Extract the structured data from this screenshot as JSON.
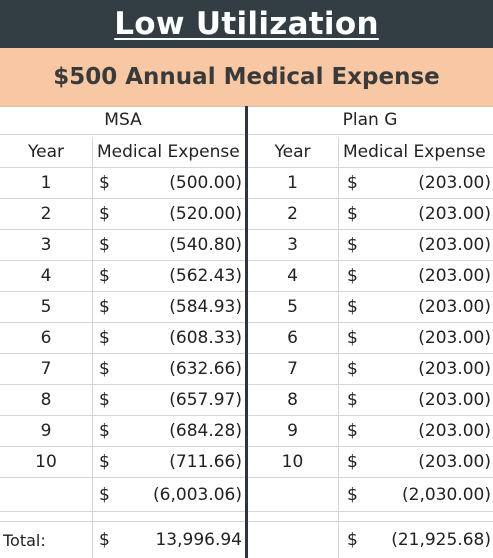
{
  "title": "Low Utilization",
  "subtitle": "$500 Annual Medical Expense",
  "msa": {
    "label": "MSA",
    "col_year": "Year",
    "col_expense": "Medical Expense",
    "rows": [
      {
        "year": "1",
        "cur": "$",
        "amount": "(500.00)"
      },
      {
        "year": "2",
        "cur": "$",
        "amount": "(520.00)"
      },
      {
        "year": "3",
        "cur": "$",
        "amount": "(540.80)"
      },
      {
        "year": "4",
        "cur": "$",
        "amount": "(562.43)"
      },
      {
        "year": "5",
        "cur": "$",
        "amount": "(584.93)"
      },
      {
        "year": "6",
        "cur": "$",
        "amount": "(608.33)"
      },
      {
        "year": "7",
        "cur": "$",
        "amount": "(632.66)"
      },
      {
        "year": "8",
        "cur": "$",
        "amount": "(657.97)"
      },
      {
        "year": "9",
        "cur": "$",
        "amount": "(684.28)"
      },
      {
        "year": "10",
        "cur": "$",
        "amount": "(711.66)"
      }
    ],
    "sum_cur": "$",
    "sum": "(6,003.06)",
    "total_cur": "$",
    "total": "13,996.94"
  },
  "plan_g": {
    "label": "Plan G",
    "col_year": "Year",
    "col_expense": "Medical Expense",
    "rows": [
      {
        "year": "1",
        "cur": "$",
        "amount": "(203.00)"
      },
      {
        "year": "2",
        "cur": "$",
        "amount": "(203.00)"
      },
      {
        "year": "3",
        "cur": "$",
        "amount": "(203.00)"
      },
      {
        "year": "4",
        "cur": "$",
        "amount": "(203.00)"
      },
      {
        "year": "5",
        "cur": "$",
        "amount": "(203.00)"
      },
      {
        "year": "6",
        "cur": "$",
        "amount": "(203.00)"
      },
      {
        "year": "7",
        "cur": "$",
        "amount": "(203.00)"
      },
      {
        "year": "8",
        "cur": "$",
        "amount": "(203.00)"
      },
      {
        "year": "9",
        "cur": "$",
        "amount": "(203.00)"
      },
      {
        "year": "10",
        "cur": "$",
        "amount": "(203.00)"
      }
    ],
    "sum_cur": "$",
    "sum": "(2,030.00)",
    "total_cur": "$",
    "total": "(21,925.68)"
  },
  "total_label": "Total:",
  "colors": {
    "title_bg": "#323e44",
    "subtitle_bg": "#f8c8a4",
    "divider": "#2e3440"
  }
}
